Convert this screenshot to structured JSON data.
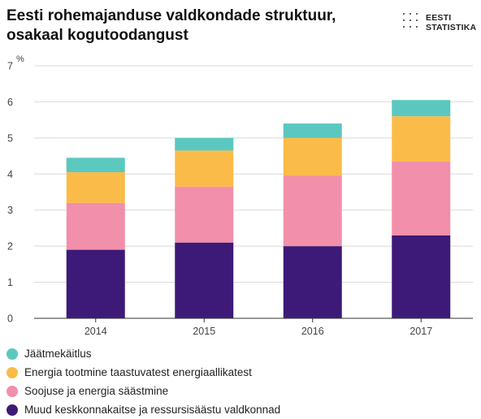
{
  "chart_data": {
    "type": "bar",
    "stacked": true,
    "title": "Eesti rohemajanduse valdkondade struktuur, osakaal kogutoodangust",
    "ylabel": "%",
    "ylim": [
      0,
      7
    ],
    "yticks": [
      0,
      1,
      2,
      3,
      4,
      5,
      6,
      7
    ],
    "grid": true,
    "legend_position": "bottom",
    "categories": [
      "2014",
      "2015",
      "2016",
      "2017"
    ],
    "series": [
      {
        "name": "Muud keskkonnakaitse ja ressursisäästu valdkonnad",
        "color": "#3d1a78",
        "values": [
          1.9,
          2.1,
          2.0,
          2.3
        ]
      },
      {
        "name": "Soojuse ja energia säästmine",
        "color": "#f28fab",
        "values": [
          1.3,
          1.55,
          1.95,
          2.05
        ]
      },
      {
        "name": "Energia tootmine taastuvatest energiaallikatest",
        "color": "#fbbb48",
        "values": [
          0.85,
          1.0,
          1.05,
          1.25
        ]
      },
      {
        "name": "Jäätmekäitlus",
        "color": "#5bc8c0",
        "values": [
          0.4,
          0.35,
          0.4,
          0.45
        ]
      }
    ]
  },
  "legend_order": [
    3,
    2,
    1,
    0
  ],
  "logo": {
    "line1": "EESTI",
    "line2": "STATISTIKA"
  }
}
